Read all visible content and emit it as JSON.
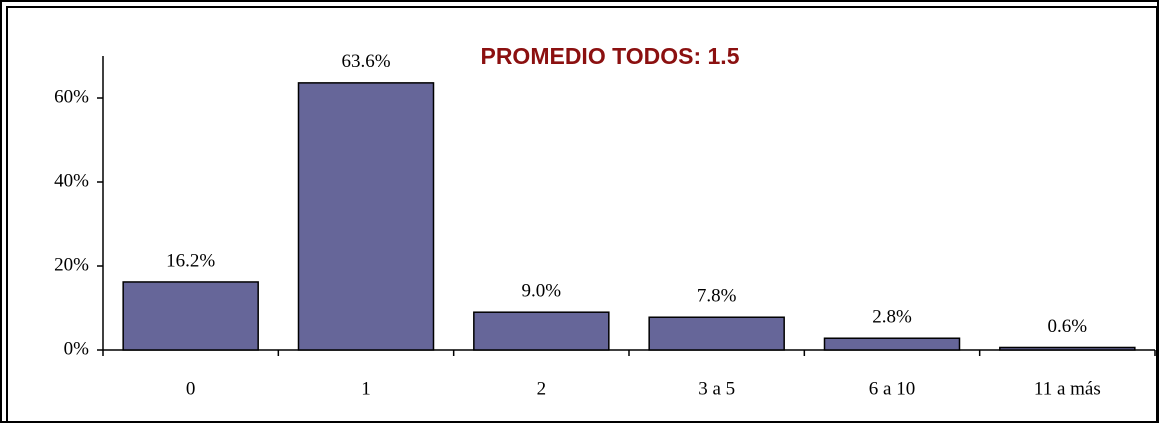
{
  "chart_data": {
    "type": "bar",
    "annotation": "PROMEDIO TODOS: 1.5",
    "categories": [
      "0",
      "1",
      "2",
      "3 a 5",
      "6 a 10",
      "11 a más"
    ],
    "values": [
      16.2,
      63.6,
      9.0,
      7.8,
      2.8,
      0.6
    ],
    "value_labels": [
      "16.2%",
      "63.6%",
      "9.0%",
      "7.8%",
      "2.8%",
      "0.6%"
    ],
    "color": "#666699",
    "ylim": [
      0,
      70
    ],
    "yticks": [
      {
        "value": 0,
        "label": "0%"
      },
      {
        "value": 20,
        "label": "20%"
      },
      {
        "value": 40,
        "label": "40%"
      },
      {
        "value": 60,
        "label": "60%"
      }
    ]
  }
}
